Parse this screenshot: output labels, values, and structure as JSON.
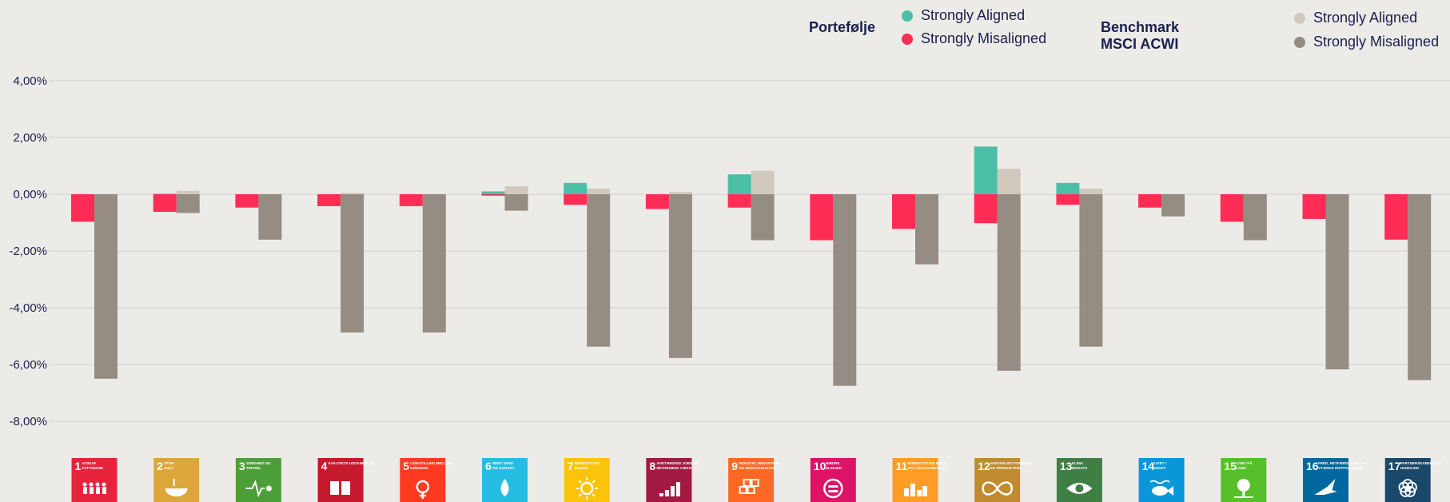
{
  "legend": {
    "portfolio_title": "Portefølje",
    "benchmark_title": "Benchmark MSCI ACWI",
    "portfolio_items": [
      {
        "label": "Strongly Aligned",
        "color": "#4bbfa5"
      },
      {
        "label": "Strongly Misaligned",
        "color": "#ff2d55"
      }
    ],
    "benchmark_items": [
      {
        "label": "Strongly Aligned",
        "color": "#d2c9be"
      },
      {
        "label": "Strongly Misaligned",
        "color": "#958c83"
      }
    ]
  },
  "chart_data": {
    "type": "bar",
    "ylim": [
      -9,
      4.5
    ],
    "yticks": [
      4,
      2,
      0,
      -2,
      -4,
      -6,
      -8
    ],
    "ytick_labels": [
      "4,00%",
      "2,00%",
      "0,00%",
      "-2,00%",
      "-4,00%",
      "-6,00%",
      "-8,00%"
    ],
    "grid": true,
    "legend_position": "top-right",
    "categories": [
      "SDG 1",
      "SDG 2",
      "SDG 3",
      "SDG 4",
      "SDG 5",
      "SDG 6",
      "SDG 7",
      "SDG 8",
      "SDG 9",
      "SDG 10",
      "SDG 11",
      "SDG 12",
      "SDG 13",
      "SDG 14",
      "SDG 15",
      "SDG 16",
      "SDG 17"
    ],
    "series": [
      {
        "group": "Portefølje",
        "name": "Strongly Aligned",
        "color": "#4bbfa5",
        "values": [
          0,
          0.02,
          0,
          0,
          0,
          0.1,
          0.4,
          0,
          0.7,
          0,
          0,
          1.68,
          0.4,
          0,
          0,
          0,
          0
        ]
      },
      {
        "group": "Portefølje",
        "name": "Strongly Misaligned",
        "color": "#ff2d55",
        "values": [
          -0.97,
          -0.62,
          -0.47,
          -0.42,
          -0.42,
          -0.05,
          -0.37,
          -0.52,
          -0.47,
          -1.62,
          -1.22,
          -1.02,
          -0.37,
          -0.47,
          -0.97,
          -0.87,
          -1.6
        ]
      },
      {
        "group": "Benchmark MSCI ACWI",
        "name": "Strongly Aligned",
        "color": "#d2c9be",
        "values": [
          0,
          0.12,
          0,
          0.05,
          0,
          0.28,
          0.2,
          0.08,
          0.83,
          0,
          0,
          0.9,
          0.2,
          0,
          0,
          0,
          0
        ]
      },
      {
        "group": "Benchmark MSCI ACWI",
        "name": "Strongly Misaligned",
        "color": "#958c83",
        "values": [
          -6.5,
          -0.66,
          -1.6,
          -4.87,
          -4.87,
          -0.58,
          -5.37,
          -5.77,
          -1.62,
          -6.75,
          -2.47,
          -6.22,
          -5.37,
          -0.78,
          -1.62,
          -6.17,
          -6.55
        ]
      }
    ],
    "sdg_tiles": [
      {
        "num": "1",
        "label": "ATSKAF FATTIGDOM",
        "color": "#e5243b",
        "icon": "family-icon"
      },
      {
        "num": "2",
        "label": "STOP SULT",
        "color": "#dda63a",
        "icon": "bowl-icon"
      },
      {
        "num": "3",
        "label": "SUNDHED OG TRIVSEL",
        "color": "#4c9f38",
        "icon": "heartbeat-icon"
      },
      {
        "num": "4",
        "label": "KVALITETS-UDDANNELSE",
        "color": "#c5192d",
        "icon": "book-icon"
      },
      {
        "num": "5",
        "label": "LIGESTILLING MELLEM KØNNENE",
        "color": "#ff3a21",
        "icon": "gender-icon"
      },
      {
        "num": "6",
        "label": "RENT VAND OG SANITET",
        "color": "#26bde2",
        "icon": "water-drop-icon"
      },
      {
        "num": "7",
        "label": "BÆREDYGTIG ENERGI",
        "color": "#fcc30b",
        "icon": "sun-icon"
      },
      {
        "num": "8",
        "label": "ANSTÆNDIGE JOBS OG ØKONOMISK VÆKST",
        "color": "#a21942",
        "icon": "growth-chart-icon"
      },
      {
        "num": "9",
        "label": "INDUSTRI, INNOVATION OG INFRASTRUKTUR",
        "color": "#fd6925",
        "icon": "cubes-icon"
      },
      {
        "num": "10",
        "label": "MINDRE ULIGHED",
        "color": "#dd1367",
        "icon": "equal-icon"
      },
      {
        "num": "11",
        "label": "BÆREDYGTIGE BYER OG LOKALSAMFUND",
        "color": "#fd9d24",
        "icon": "city-icon"
      },
      {
        "num": "12",
        "label": "ANSVARLIGT FORBRUG OG PRODUKTION",
        "color": "#bf8b2e",
        "icon": "infinity-icon"
      },
      {
        "num": "13",
        "label": "KLIMA INDSATS",
        "color": "#3f7e44",
        "icon": "eye-icon"
      },
      {
        "num": "14",
        "label": "LIVET I HAVET",
        "color": "#0a97d9",
        "icon": "fish-icon"
      },
      {
        "num": "15",
        "label": "LIVET PÅ LAND",
        "color": "#56c02b",
        "icon": "tree-icon"
      },
      {
        "num": "16",
        "label": "FRED, RETFÆRDIGHED OG STÆRKE INSTITUTIONER",
        "color": "#00689d",
        "icon": "dove-icon"
      },
      {
        "num": "17",
        "label": "PARTNERSKABER FOR HANDLING",
        "color": "#19486a",
        "icon": "rings-icon"
      }
    ]
  }
}
